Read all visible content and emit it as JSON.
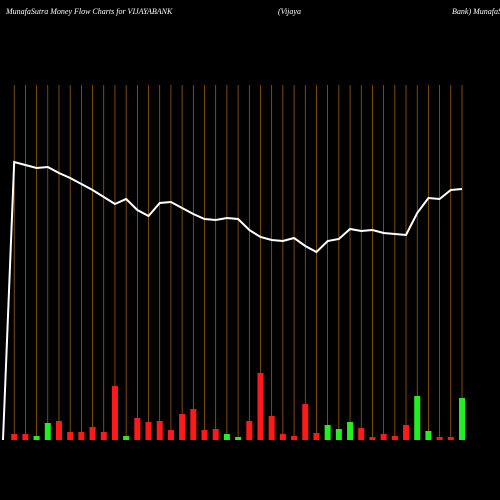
{
  "chart_data": {
    "type": "money-flow",
    "title": [
      "MunafaSutra  Money Flow  Charts for VIJAYABANK",
      "(Vijaya",
      "Bank) MunafaS"
    ],
    "categories": [
      null,
      null,
      null,
      null,
      null,
      null,
      null,
      null,
      null,
      null,
      null,
      null,
      null,
      null,
      null,
      null,
      null,
      null,
      null,
      null,
      null,
      null,
      null,
      null,
      null,
      null,
      null,
      null,
      null,
      null,
      null,
      null,
      null,
      null,
      null,
      null,
      null,
      null,
      null,
      null,
      null,
      null
    ],
    "grid_color": "#b06a10",
    "line": {
      "color": "#ffffff",
      "values": [
        0,
        278,
        275,
        272,
        273,
        267,
        262,
        256,
        250,
        243,
        236,
        241,
        230,
        224,
        237,
        238,
        232,
        226,
        221,
        220,
        222,
        221,
        210,
        203,
        200,
        199,
        202,
        194,
        188,
        199,
        201,
        211,
        209,
        210,
        207,
        206,
        205,
        227,
        242,
        241,
        250,
        251
      ]
    },
    "bars": {
      "values": [
        null,
        6,
        6,
        4,
        17,
        19,
        8,
        8,
        13,
        8,
        54,
        4,
        22,
        18,
        19,
        10,
        26,
        31,
        10,
        11,
        6,
        3,
        19,
        67,
        24,
        6,
        4,
        36,
        7,
        15,
        11,
        18,
        12,
        3,
        6,
        4,
        15,
        44,
        9,
        3,
        3,
        42
      ],
      "colors": [
        null,
        "#ff1a1a",
        "#ff1a1a",
        "#22ee22",
        "#22ee22",
        "#ff1a1a",
        "#ff1a1a",
        "#ff1a1a",
        "#ff1a1a",
        "#ff1a1a",
        "#ff1a1a",
        "#22ee22",
        "#ff1a1a",
        "#ff1a1a",
        "#ff1a1a",
        "#ff1a1a",
        "#ff1a1a",
        "#ff1a1a",
        "#ff1a1a",
        "#ff1a1a",
        "#22ee22",
        "#22ee22",
        "#ff1a1a",
        "#ff1a1a",
        "#ff1a1a",
        "#ff1a1a",
        "#ff1a1a",
        "#ff1a1a",
        "#ff1a1a",
        "#22ee22",
        "#22ee22",
        "#22ee22",
        "#ff1a1a",
        "#ff1a1a",
        "#ff1a1a",
        "#ff1a1a",
        "#ff1a1a",
        "#22ee22",
        "#22ee22",
        "#ff1a1a",
        "#ff1a1a",
        "#22ee22"
      ]
    }
  }
}
